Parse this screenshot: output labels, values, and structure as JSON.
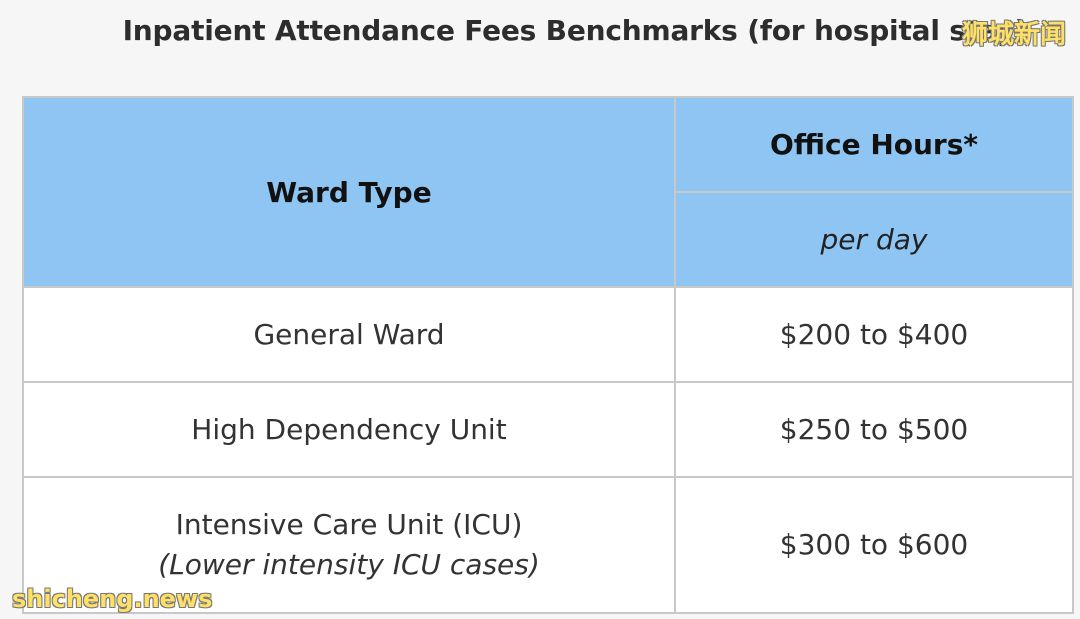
{
  "title": "Inpatient Attendance Fees Benchmarks (for hospital stay)",
  "table": {
    "header": {
      "col1": "Ward Type",
      "col2": "Office Hours*",
      "col2_sub": "per day"
    },
    "rows": [
      {
        "ward": "General Ward",
        "note": "",
        "fee": "$200 to $400"
      },
      {
        "ward": "High Dependency Unit",
        "note": "",
        "fee": "$250 to $500"
      },
      {
        "ward": "Intensive Care Unit (ICU)",
        "note": "(Lower intensity ICU cases)",
        "fee": "$300 to $600"
      }
    ]
  },
  "watermarks": {
    "top_right": "狮城新闻",
    "bottom_left": "shicheng.news"
  },
  "colors": {
    "header_bg": "#8fc5f3",
    "border": "#c8c8c8",
    "page_bg": "#f6f6f6"
  }
}
